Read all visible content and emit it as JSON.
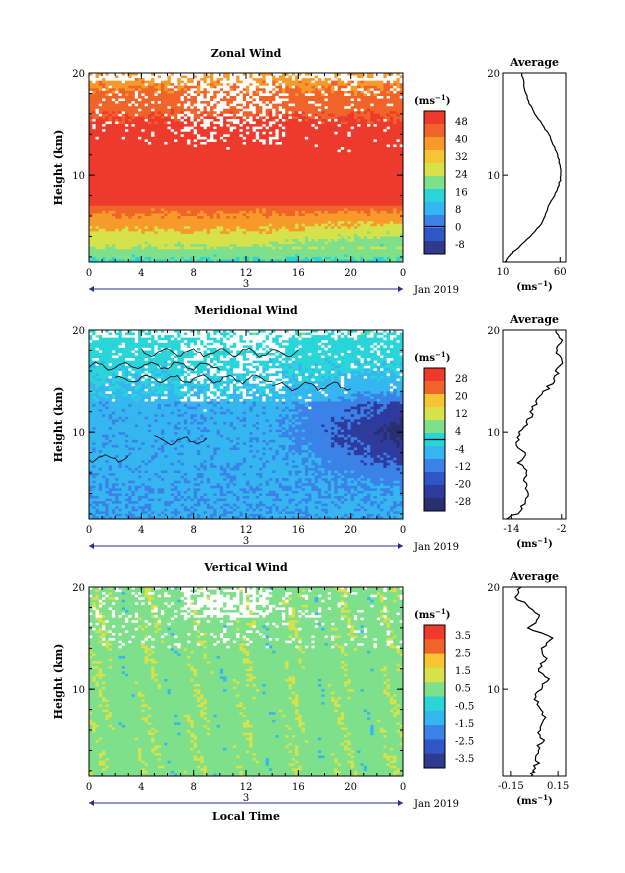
{
  "time_label": "Local Time",
  "date_label": "3",
  "month_label": "Jan 2019",
  "chart_data": [
    {
      "type": "heatmap",
      "title": "Zonal Wind",
      "ylabel": "Height (km)",
      "xlabel": "",
      "x_ticks": [
        "0",
        "4",
        "8",
        "12",
        "16",
        "20",
        "0"
      ],
      "y_ticks": [
        "10",
        "20"
      ],
      "xlim": [
        0,
        24
      ],
      "ylim": [
        1.5,
        20
      ],
      "colorbar": {
        "unit": "(ms",
        "unit_sup": "−1",
        "unit_close": ")",
        "tick_labels": [
          "48",
          "40",
          "32",
          "24",
          "16",
          "8",
          "0",
          "-8"
        ],
        "levels": [
          -8,
          0,
          8,
          16,
          24,
          32,
          40,
          48
        ],
        "contour_level": 0,
        "colors": [
          "#2e3a8c",
          "#2f56c6",
          "#3b82e8",
          "#35b6f0",
          "#29d5d8",
          "#7ee08a",
          "#d6e24a",
          "#f7c531",
          "#f79a2a",
          "#f0642a",
          "#ee3a2c"
        ]
      },
      "profile": {
        "title": "Average",
        "unit": "(ms",
        "unit_sup": "−1",
        "unit_close": ")",
        "x_ticks": [
          "10",
          "60"
        ],
        "xlim": [
          10,
          65
        ],
        "heights": [
          1.5,
          2,
          2.5,
          3,
          4,
          5,
          6,
          7,
          8,
          9,
          10,
          11,
          12,
          13,
          14,
          15,
          16,
          17,
          18,
          19,
          20
        ],
        "values": [
          12,
          15,
          19,
          24,
          34,
          42,
          47,
          50,
          55,
          59,
          61,
          60,
          58,
          54,
          50,
          44,
          38,
          33,
          30,
          28,
          26
        ]
      }
    },
    {
      "type": "heatmap",
      "title": "Meridional Wind",
      "ylabel": "Height (km)",
      "xlabel": "",
      "x_ticks": [
        "0",
        "4",
        "8",
        "12",
        "16",
        "20",
        "0"
      ],
      "y_ticks": [
        "10",
        "20"
      ],
      "xlim": [
        0,
        24
      ],
      "ylim": [
        1.5,
        20
      ],
      "colorbar": {
        "unit": "(ms",
        "unit_sup": "−1",
        "unit_close": ")",
        "tick_labels": [
          "28",
          "20",
          "12",
          "4",
          "-4",
          "-12",
          "-20",
          "-28"
        ],
        "levels": [
          -28,
          -20,
          -12,
          -4,
          4,
          12,
          20,
          28
        ],
        "contour_level": 0,
        "colors": [
          "#2a2f6e",
          "#2e3a9c",
          "#2f56c6",
          "#3b82e8",
          "#35b6f0",
          "#29d5d8",
          "#7ee08a",
          "#d6e24a",
          "#f7c531",
          "#f0642a",
          "#ee3a2c"
        ]
      },
      "profile": {
        "title": "Average",
        "unit": "(ms",
        "unit_sup": "−1",
        "unit_close": ")",
        "x_ticks": [
          "-14",
          "-2"
        ],
        "xlim": [
          -16,
          -1
        ],
        "heights": [
          1.5,
          2,
          3,
          4,
          5,
          6,
          7,
          8,
          9,
          10,
          11,
          12,
          13,
          14,
          15,
          16,
          17,
          18,
          19,
          20
        ],
        "values": [
          -15,
          -13,
          -11,
          -10,
          -11,
          -10,
          -12,
          -11,
          -13,
          -12,
          -10,
          -9,
          -8,
          -6,
          -4,
          -3,
          -2,
          -3,
          -2,
          -3
        ]
      }
    },
    {
      "type": "heatmap",
      "title": "Vertical Wind",
      "ylabel": "Height (km)",
      "xlabel": "Local Time",
      "x_ticks": [
        "0",
        "4",
        "8",
        "12",
        "16",
        "20",
        "0"
      ],
      "y_ticks": [
        "10",
        "20"
      ],
      "xlim": [
        0,
        24
      ],
      "ylim": [
        1.5,
        20
      ],
      "colorbar": {
        "unit": "(ms",
        "unit_sup": "−1",
        "unit_close": ")",
        "tick_labels": [
          "3.5",
          "2.5",
          "1.5",
          "0.5",
          "-0.5",
          "-1.5",
          "-2.5",
          "-3.5"
        ],
        "levels": [
          -3.5,
          -2.5,
          -1.5,
          -0.5,
          0.5,
          1.5,
          2.5,
          3.5
        ],
        "colors": [
          "#2e3a8c",
          "#2f56c6",
          "#3b82e8",
          "#35b6f0",
          "#29d5d8",
          "#7ee08a",
          "#d6e24a",
          "#f7c531",
          "#f0642a",
          "#ee3a2c"
        ]
      },
      "profile": {
        "title": "Average",
        "unit": "(ms",
        "unit_sup": "−1",
        "unit_close": ")",
        "x_ticks": [
          "-0.15",
          "0.15"
        ],
        "xlim": [
          -0.2,
          0.2
        ],
        "heights": [
          1.5,
          2,
          3,
          4,
          5,
          6,
          7,
          8,
          9,
          10,
          11,
          12,
          13,
          14,
          15,
          16,
          17,
          18,
          19,
          20
        ],
        "values": [
          -0.02,
          0.0,
          0.02,
          0.01,
          0.05,
          0.03,
          0.07,
          0.04,
          0.0,
          0.03,
          0.1,
          0.02,
          0.08,
          0.05,
          0.12,
          -0.05,
          0.04,
          -0.02,
          -0.12,
          -0.1
        ]
      }
    }
  ]
}
